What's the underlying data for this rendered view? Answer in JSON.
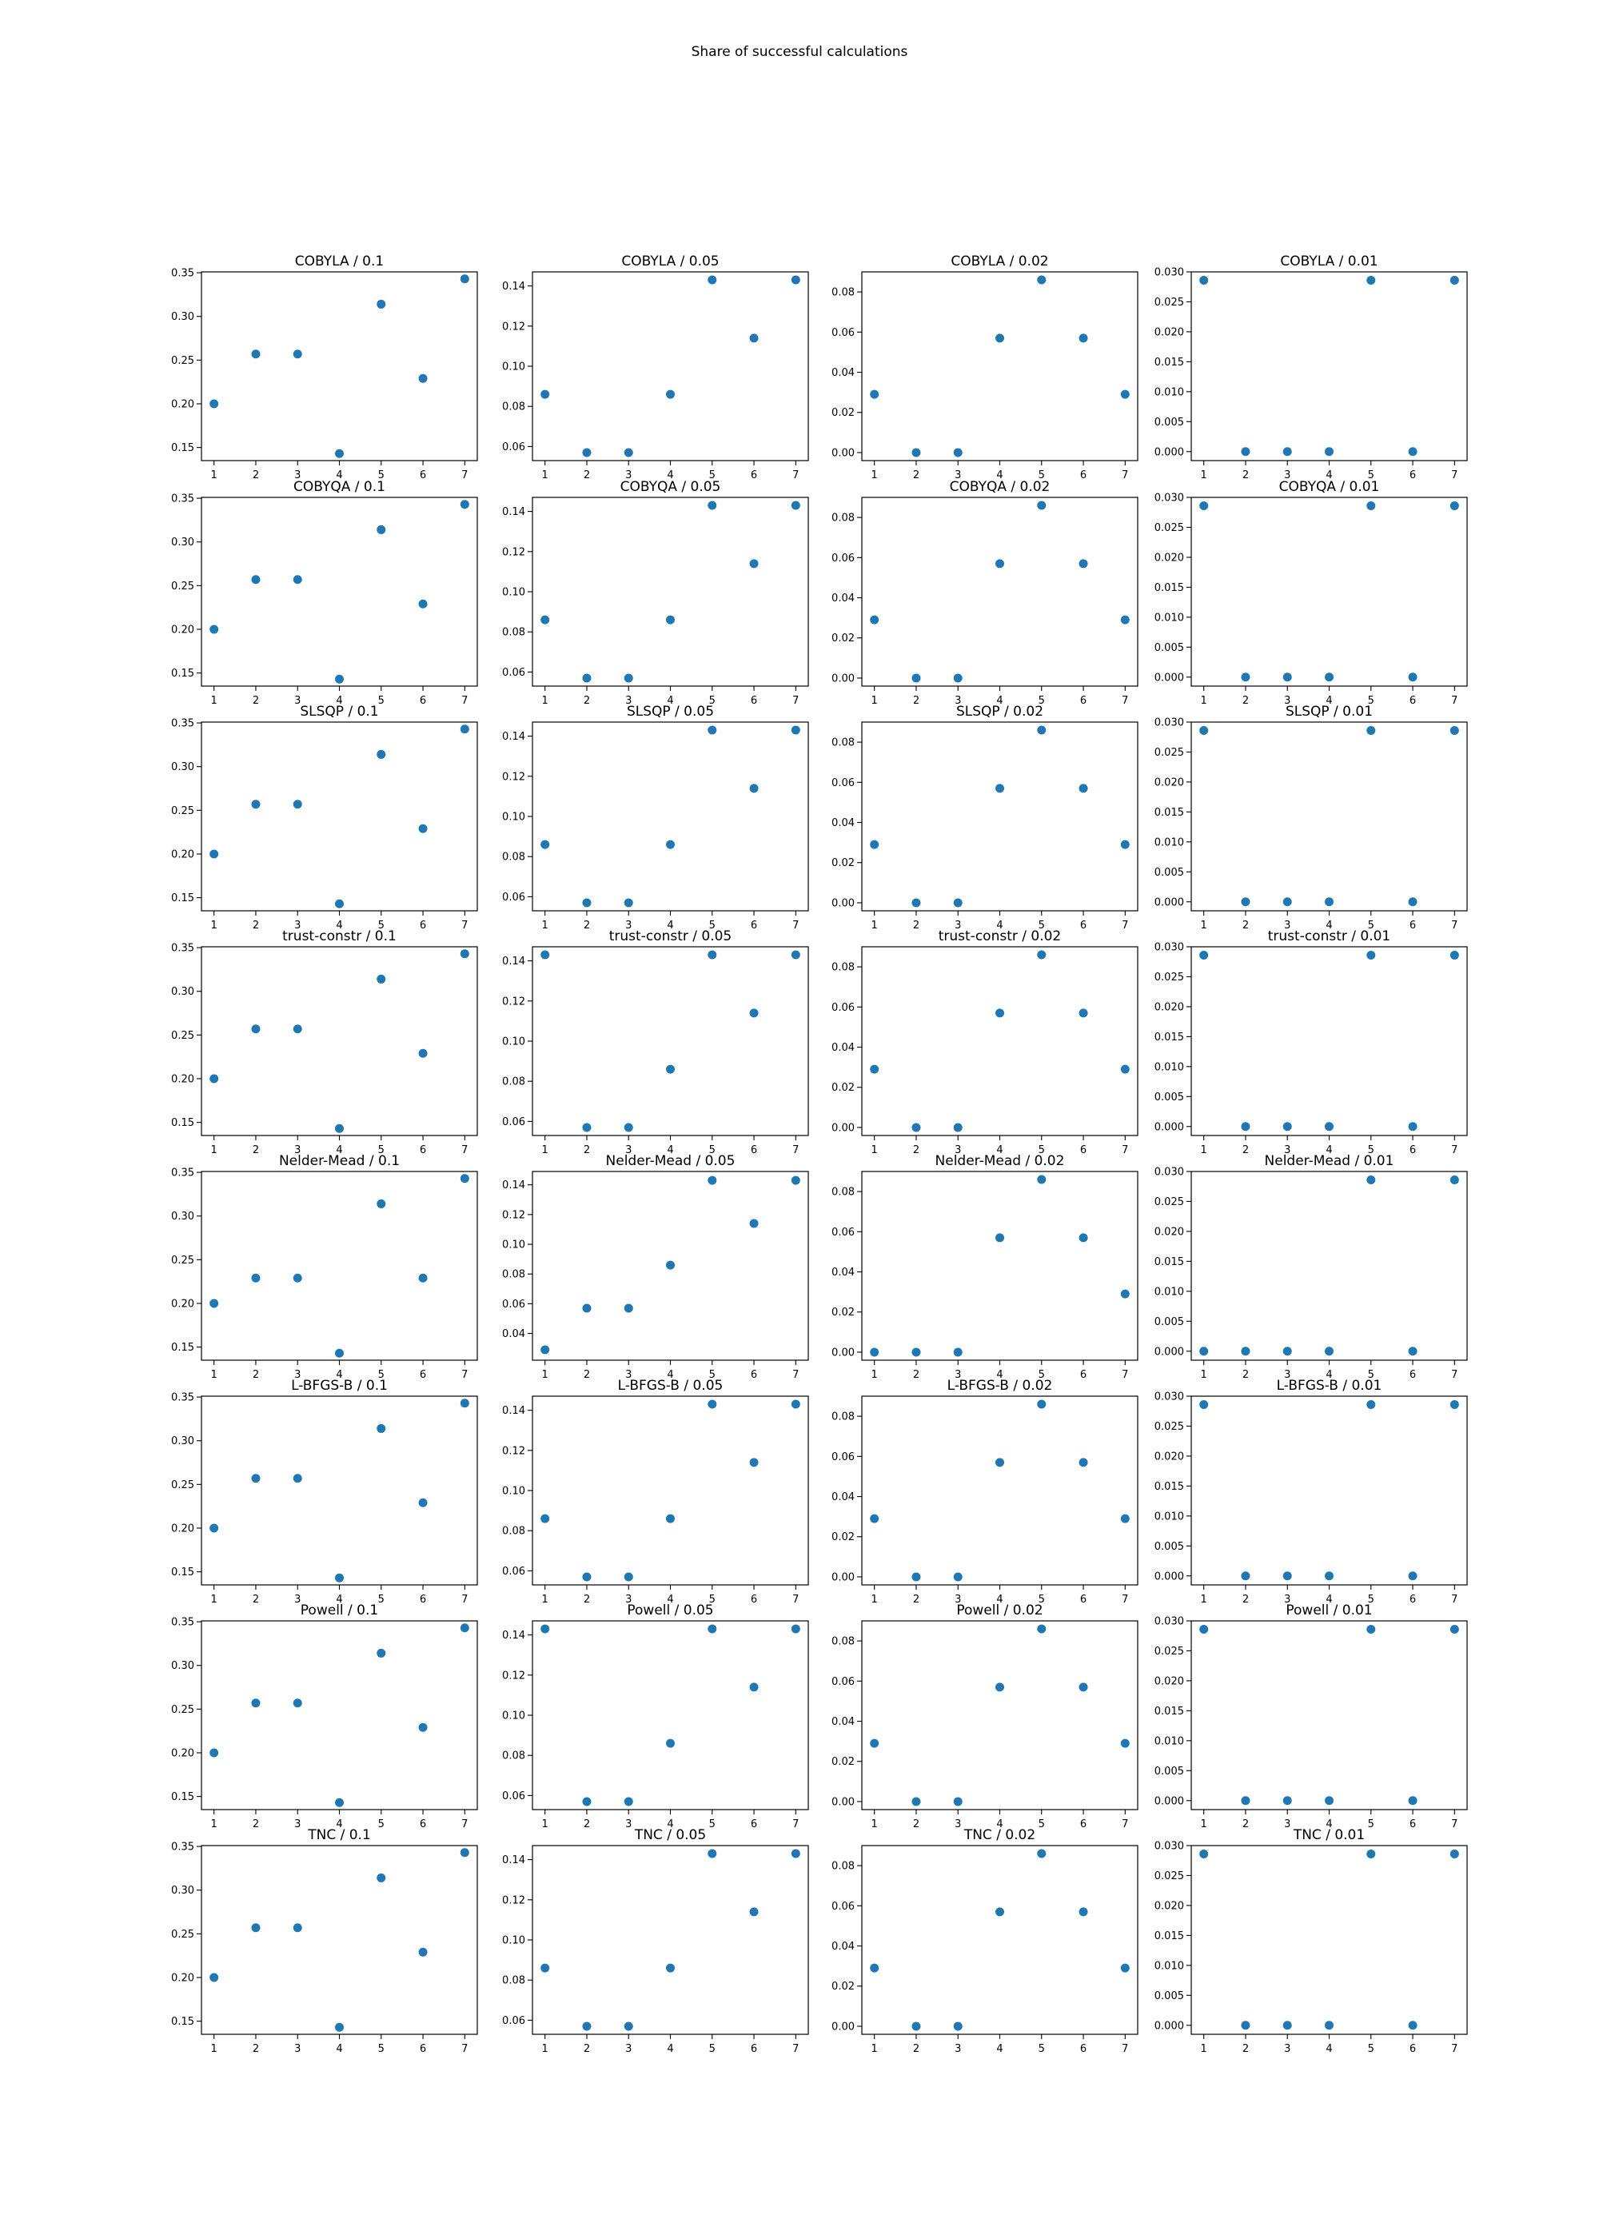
{
  "figure": {
    "suptitle": "Share of successful calculations"
  },
  "style": {
    "marker_color": "#1f77b4",
    "axes_color": "#000000"
  },
  "chart_data": {
    "type": "scatter",
    "layout": "8 rows x 4 columns of scatter subplots",
    "x": [
      1,
      2,
      3,
      4,
      5,
      6,
      7
    ],
    "x_ticks": [
      "1",
      "2",
      "3",
      "4",
      "5",
      "6",
      "7"
    ],
    "grid": false,
    "subplots": [
      {
        "title": "COBYLA / 0.1",
        "y": [
          0.2,
          0.257,
          0.257,
          0.143,
          0.314,
          0.229,
          0.343
        ],
        "ylim": [
          0.135,
          0.351
        ],
        "yticks": [
          "0.15",
          "0.20",
          "0.25",
          "0.30",
          "0.35"
        ]
      },
      {
        "title": "COBYLA / 0.05",
        "y": [
          0.086,
          0.057,
          0.057,
          0.086,
          0.143,
          0.114,
          0.143
        ],
        "ylim": [
          0.053,
          0.147
        ],
        "yticks": [
          "0.06",
          "0.08",
          "0.10",
          "0.12",
          "0.14"
        ]
      },
      {
        "title": "COBYLA / 0.02",
        "y": [
          0.029,
          0.0,
          0.0,
          0.057,
          0.086,
          0.057,
          0.029
        ],
        "ylim": [
          -0.004,
          0.09
        ],
        "yticks": [
          "0.00",
          "0.02",
          "0.04",
          "0.06",
          "0.08"
        ]
      },
      {
        "title": "COBYLA / 0.01",
        "y": [
          0.0286,
          0.0,
          0.0,
          0.0,
          0.0286,
          0.0,
          0.0286
        ],
        "ylim": [
          -0.0015,
          0.03
        ],
        "yticks": [
          "0.000",
          "0.005",
          "0.010",
          "0.015",
          "0.020",
          "0.025",
          "0.030"
        ]
      },
      {
        "title": "COBYQA / 0.1",
        "y": [
          0.2,
          0.257,
          0.257,
          0.143,
          0.314,
          0.229,
          0.343
        ],
        "ylim": [
          0.135,
          0.351
        ],
        "yticks": [
          "0.15",
          "0.20",
          "0.25",
          "0.30",
          "0.35"
        ]
      },
      {
        "title": "COBYQA / 0.05",
        "y": [
          0.086,
          0.057,
          0.057,
          0.086,
          0.143,
          0.114,
          0.143
        ],
        "ylim": [
          0.053,
          0.147
        ],
        "yticks": [
          "0.06",
          "0.08",
          "0.10",
          "0.12",
          "0.14"
        ]
      },
      {
        "title": "COBYQA / 0.02",
        "y": [
          0.029,
          0.0,
          0.0,
          0.057,
          0.086,
          0.057,
          0.029
        ],
        "ylim": [
          -0.004,
          0.09
        ],
        "yticks": [
          "0.00",
          "0.02",
          "0.04",
          "0.06",
          "0.08"
        ]
      },
      {
        "title": "COBYQA / 0.01",
        "y": [
          0.0286,
          0.0,
          0.0,
          0.0,
          0.0286,
          0.0,
          0.0286
        ],
        "ylim": [
          -0.0015,
          0.03
        ],
        "yticks": [
          "0.000",
          "0.005",
          "0.010",
          "0.015",
          "0.020",
          "0.025",
          "0.030"
        ]
      },
      {
        "title": "SLSQP / 0.1",
        "y": [
          0.2,
          0.257,
          0.257,
          0.143,
          0.314,
          0.229,
          0.343
        ],
        "ylim": [
          0.135,
          0.351
        ],
        "yticks": [
          "0.15",
          "0.20",
          "0.25",
          "0.30",
          "0.35"
        ]
      },
      {
        "title": "SLSQP / 0.05",
        "y": [
          0.086,
          0.057,
          0.057,
          0.086,
          0.143,
          0.114,
          0.143
        ],
        "ylim": [
          0.053,
          0.147
        ],
        "yticks": [
          "0.06",
          "0.08",
          "0.10",
          "0.12",
          "0.14"
        ]
      },
      {
        "title": "SLSQP / 0.02",
        "y": [
          0.029,
          0.0,
          0.0,
          0.057,
          0.086,
          0.057,
          0.029
        ],
        "ylim": [
          -0.004,
          0.09
        ],
        "yticks": [
          "0.00",
          "0.02",
          "0.04",
          "0.06",
          "0.08"
        ]
      },
      {
        "title": "SLSQP / 0.01",
        "y": [
          0.0286,
          0.0,
          0.0,
          0.0,
          0.0286,
          0.0,
          0.0286
        ],
        "ylim": [
          -0.0015,
          0.03
        ],
        "yticks": [
          "0.000",
          "0.005",
          "0.010",
          "0.015",
          "0.020",
          "0.025",
          "0.030"
        ]
      },
      {
        "title": "trust-constr / 0.1",
        "y": [
          0.2,
          0.257,
          0.257,
          0.143,
          0.314,
          0.229,
          0.343
        ],
        "ylim": [
          0.135,
          0.351
        ],
        "yticks": [
          "0.15",
          "0.20",
          "0.25",
          "0.30",
          "0.35"
        ]
      },
      {
        "title": "trust-constr / 0.05",
        "y": [
          0.143,
          0.057,
          0.057,
          0.086,
          0.143,
          0.114,
          0.143
        ],
        "ylim": [
          0.053,
          0.147
        ],
        "yticks": [
          "0.06",
          "0.08",
          "0.10",
          "0.12",
          "0.14"
        ]
      },
      {
        "title": "trust-constr / 0.02",
        "y": [
          0.029,
          0.0,
          0.0,
          0.057,
          0.086,
          0.057,
          0.029
        ],
        "ylim": [
          -0.004,
          0.09
        ],
        "yticks": [
          "0.00",
          "0.02",
          "0.04",
          "0.06",
          "0.08"
        ]
      },
      {
        "title": "trust-constr / 0.01",
        "y": [
          0.0286,
          0.0,
          0.0,
          0.0,
          0.0286,
          0.0,
          0.0286
        ],
        "ylim": [
          -0.0015,
          0.03
        ],
        "yticks": [
          "0.000",
          "0.005",
          "0.010",
          "0.015",
          "0.020",
          "0.025",
          "0.030"
        ]
      },
      {
        "title": "Nelder-Mead / 0.1",
        "y": [
          0.2,
          0.229,
          0.229,
          0.143,
          0.314,
          0.229,
          0.343
        ],
        "ylim": [
          0.135,
          0.351
        ],
        "yticks": [
          "0.15",
          "0.20",
          "0.25",
          "0.30",
          "0.35"
        ]
      },
      {
        "title": "Nelder-Mead / 0.05",
        "y": [
          0.029,
          0.057,
          0.057,
          0.086,
          0.143,
          0.114,
          0.143
        ],
        "ylim": [
          0.022,
          0.149
        ],
        "yticks": [
          "0.04",
          "0.06",
          "0.08",
          "0.10",
          "0.12",
          "0.14"
        ]
      },
      {
        "title": "Nelder-Mead / 0.02",
        "y": [
          0.0,
          0.0,
          0.0,
          0.057,
          0.086,
          0.057,
          0.029
        ],
        "ylim": [
          -0.004,
          0.09
        ],
        "yticks": [
          "0.00",
          "0.02",
          "0.04",
          "0.06",
          "0.08"
        ]
      },
      {
        "title": "Nelder-Mead / 0.01",
        "y": [
          0.0,
          0.0,
          0.0,
          0.0,
          0.0286,
          0.0,
          0.0286
        ],
        "ylim": [
          -0.0015,
          0.03
        ],
        "yticks": [
          "0.000",
          "0.005",
          "0.010",
          "0.015",
          "0.020",
          "0.025",
          "0.030"
        ]
      },
      {
        "title": "L-BFGS-B / 0.1",
        "y": [
          0.2,
          0.257,
          0.257,
          0.143,
          0.314,
          0.229,
          0.343
        ],
        "ylim": [
          0.135,
          0.351
        ],
        "yticks": [
          "0.15",
          "0.20",
          "0.25",
          "0.30",
          "0.35"
        ]
      },
      {
        "title": "L-BFGS-B / 0.05",
        "y": [
          0.086,
          0.057,
          0.057,
          0.086,
          0.143,
          0.114,
          0.143
        ],
        "ylim": [
          0.053,
          0.147
        ],
        "yticks": [
          "0.06",
          "0.08",
          "0.10",
          "0.12",
          "0.14"
        ]
      },
      {
        "title": "L-BFGS-B / 0.02",
        "y": [
          0.029,
          0.0,
          0.0,
          0.057,
          0.086,
          0.057,
          0.029
        ],
        "ylim": [
          -0.004,
          0.09
        ],
        "yticks": [
          "0.00",
          "0.02",
          "0.04",
          "0.06",
          "0.08"
        ]
      },
      {
        "title": "L-BFGS-B / 0.01",
        "y": [
          0.0286,
          0.0,
          0.0,
          0.0,
          0.0286,
          0.0,
          0.0286
        ],
        "ylim": [
          -0.0015,
          0.03
        ],
        "yticks": [
          "0.000",
          "0.005",
          "0.010",
          "0.015",
          "0.020",
          "0.025",
          "0.030"
        ]
      },
      {
        "title": "Powell / 0.1",
        "y": [
          0.2,
          0.257,
          0.257,
          0.143,
          0.314,
          0.229,
          0.343
        ],
        "ylim": [
          0.135,
          0.351
        ],
        "yticks": [
          "0.15",
          "0.20",
          "0.25",
          "0.30",
          "0.35"
        ]
      },
      {
        "title": "Powell / 0.05",
        "y": [
          0.143,
          0.057,
          0.057,
          0.086,
          0.143,
          0.114,
          0.143
        ],
        "ylim": [
          0.053,
          0.147
        ],
        "yticks": [
          "0.06",
          "0.08",
          "0.10",
          "0.12",
          "0.14"
        ]
      },
      {
        "title": "Powell / 0.02",
        "y": [
          0.029,
          0.0,
          0.0,
          0.057,
          0.086,
          0.057,
          0.029
        ],
        "ylim": [
          -0.004,
          0.09
        ],
        "yticks": [
          "0.00",
          "0.02",
          "0.04",
          "0.06",
          "0.08"
        ]
      },
      {
        "title": "Powell / 0.01",
        "y": [
          0.0286,
          0.0,
          0.0,
          0.0,
          0.0286,
          0.0,
          0.0286
        ],
        "ylim": [
          -0.0015,
          0.03
        ],
        "yticks": [
          "0.000",
          "0.005",
          "0.010",
          "0.015",
          "0.020",
          "0.025",
          "0.030"
        ]
      },
      {
        "title": "TNC / 0.1",
        "y": [
          0.2,
          0.257,
          0.257,
          0.143,
          0.314,
          0.229,
          0.343
        ],
        "ylim": [
          0.135,
          0.351
        ],
        "yticks": [
          "0.15",
          "0.20",
          "0.25",
          "0.30",
          "0.35"
        ]
      },
      {
        "title": "TNC / 0.05",
        "y": [
          0.086,
          0.057,
          0.057,
          0.086,
          0.143,
          0.114,
          0.143
        ],
        "ylim": [
          0.053,
          0.147
        ],
        "yticks": [
          "0.06",
          "0.08",
          "0.10",
          "0.12",
          "0.14"
        ]
      },
      {
        "title": "TNC / 0.02",
        "y": [
          0.029,
          0.0,
          0.0,
          0.057,
          0.086,
          0.057,
          0.029
        ],
        "ylim": [
          -0.004,
          0.09
        ],
        "yticks": [
          "0.00",
          "0.02",
          "0.04",
          "0.06",
          "0.08"
        ]
      },
      {
        "title": "TNC / 0.01",
        "y": [
          0.0286,
          0.0,
          0.0,
          0.0,
          0.0286,
          0.0,
          0.0286
        ],
        "ylim": [
          -0.0015,
          0.03
        ],
        "yticks": [
          "0.000",
          "0.005",
          "0.010",
          "0.015",
          "0.020",
          "0.025",
          "0.030"
        ]
      }
    ]
  }
}
